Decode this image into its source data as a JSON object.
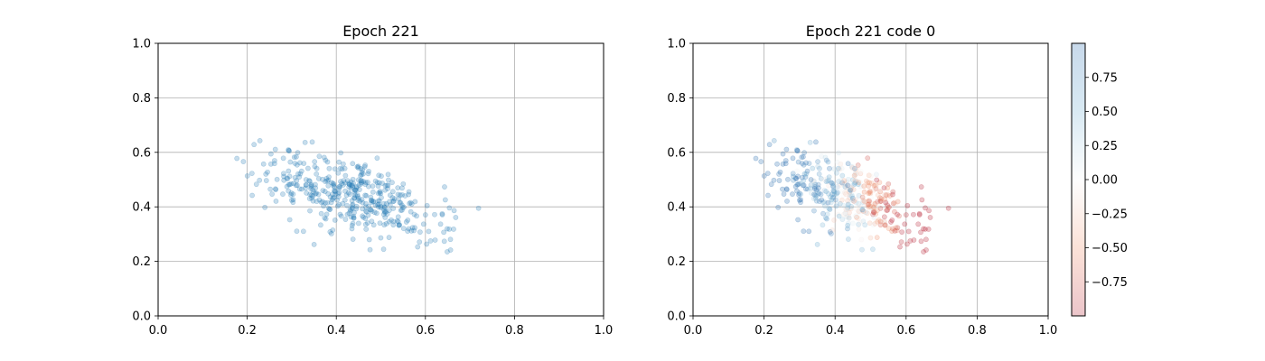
{
  "chart_data": [
    {
      "type": "scatter",
      "title": "Epoch 221",
      "xlabel": "",
      "ylabel": "",
      "xlim": [
        0,
        1
      ],
      "ylim": [
        0,
        1
      ],
      "xticks": [
        "0.0",
        "0.2",
        "0.4",
        "0.6",
        "0.8",
        "1.0"
      ],
      "yticks": [
        "0.0",
        "0.2",
        "0.4",
        "0.6",
        "0.8",
        "1.0"
      ],
      "grid": true,
      "marker_color": "#1f77b4",
      "marker_alpha": 0.25,
      "point_cloud": {
        "count": 420,
        "center": [
          0.43,
          0.44
        ],
        "x_range": [
          0.15,
          0.73
        ],
        "y_range": [
          0.23,
          0.66
        ],
        "trend": "downward slope from upper-left to lower-right"
      }
    },
    {
      "type": "scatter",
      "title": "Epoch 221 code 0",
      "xlabel": "",
      "ylabel": "",
      "xlim": [
        0,
        1
      ],
      "ylim": [
        0,
        1
      ],
      "xticks": [
        "0.0",
        "0.2",
        "0.4",
        "0.6",
        "0.8",
        "1.0"
      ],
      "yticks": [
        "0.0",
        "0.2",
        "0.4",
        "0.6",
        "0.8",
        "1.0"
      ],
      "grid": true,
      "colormap": "RdBu (red = negative, blue = positive)",
      "marker_alpha": 0.25,
      "same_points_as": "Epoch 221",
      "color_trend": "blue on left (low x), red on right (high x)",
      "colorbar": {
        "range": [
          -1,
          1
        ],
        "ticks": [
          "0.75",
          "0.50",
          "0.25",
          "0.00",
          "−0.25",
          "−0.50",
          "−0.75"
        ],
        "tick_values": [
          0.75,
          0.5,
          0.25,
          0.0,
          -0.25,
          -0.5,
          -0.75
        ],
        "top_color": "#2166ac",
        "mid_color": "#f7f7f7",
        "bottom_color": "#b2182b"
      }
    }
  ]
}
